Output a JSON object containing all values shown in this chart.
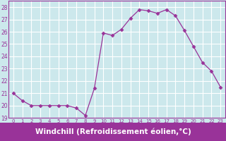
{
  "x": [
    0,
    1,
    2,
    3,
    4,
    5,
    6,
    7,
    8,
    9,
    10,
    11,
    12,
    13,
    14,
    15,
    16,
    17,
    18,
    19,
    20,
    21,
    22,
    23
  ],
  "y": [
    21.0,
    20.4,
    20.0,
    20.0,
    20.0,
    20.0,
    20.0,
    19.8,
    19.2,
    21.4,
    25.9,
    25.7,
    26.2,
    27.1,
    27.8,
    27.7,
    27.5,
    27.8,
    27.3,
    26.1,
    24.8,
    23.5,
    22.8,
    21.5
  ],
  "line_color": "#993399",
  "marker": "D",
  "marker_size": 2.5,
  "xlabel": "Windchill (Refroidissement éolien,°C)",
  "xlabel_fontsize": 7.5,
  "ylim": [
    19,
    28.5
  ],
  "xlim": [
    -0.5,
    23.5
  ],
  "yticks": [
    19,
    20,
    21,
    22,
    23,
    24,
    25,
    26,
    27,
    28
  ],
  "xticks": [
    0,
    1,
    2,
    3,
    4,
    5,
    6,
    7,
    8,
    9,
    10,
    11,
    12,
    13,
    14,
    15,
    16,
    17,
    18,
    19,
    20,
    21,
    22,
    23
  ],
  "bg_color": "#cce8ec",
  "grid_color": "#ffffff",
  "tick_color": "#993399",
  "xlabel_bg_color": "#993399",
  "xlabel_text_color": "#ffffff",
  "border_color": "#993399"
}
